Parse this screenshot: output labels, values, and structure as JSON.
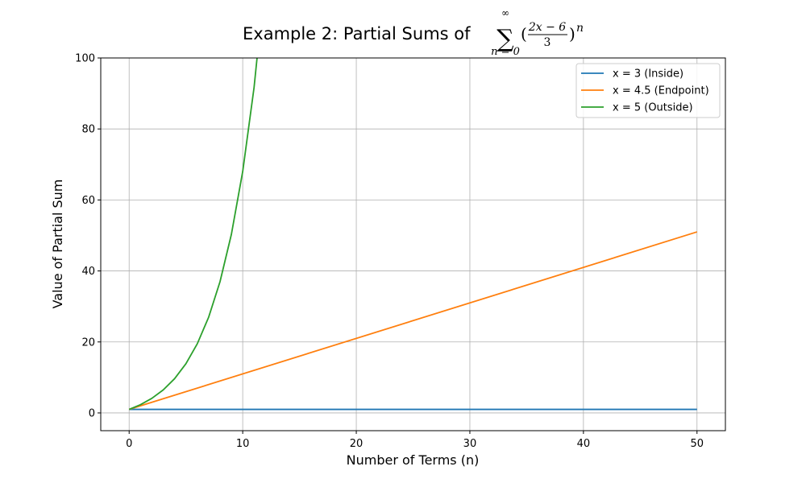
{
  "chart_data": {
    "type": "line",
    "title": {
      "prefix": "Example 2: Partial Sums of",
      "sum_upper": "∞",
      "sum_lower": "n = 0",
      "numerator": "2x − 6",
      "denominator": "3",
      "exponent": "n"
    },
    "xlabel": "Number of Terms (n)",
    "ylabel": "Value of Partial Sum",
    "xlim": [
      -2.5,
      52.5
    ],
    "ylim": [
      -5,
      100
    ],
    "xticks": [
      0,
      10,
      20,
      30,
      40,
      50
    ],
    "yticks": [
      0,
      20,
      40,
      60,
      80,
      100
    ],
    "grid": true,
    "legend_position": "top-right",
    "series": [
      {
        "name": "x = 3 (Inside)",
        "color": "#1f77b4",
        "x": [
          0,
          50
        ],
        "y": [
          1,
          1
        ]
      },
      {
        "name": "x = 4.5 (Endpoint)",
        "color": "#ff7f0e",
        "x": [
          0,
          50
        ],
        "y": [
          1,
          51
        ]
      },
      {
        "name": "x = 5 (Outside)",
        "color": "#2ca02c",
        "x": [
          0,
          1,
          2,
          3,
          4,
          5,
          6,
          7,
          8,
          9,
          10,
          11,
          12
        ],
        "y": [
          1,
          2.333,
          4.111,
          6.481,
          9.642,
          13.856,
          19.475,
          26.966,
          36.955,
          50.274,
          68.032,
          91.709,
          123.279
        ]
      }
    ]
  }
}
